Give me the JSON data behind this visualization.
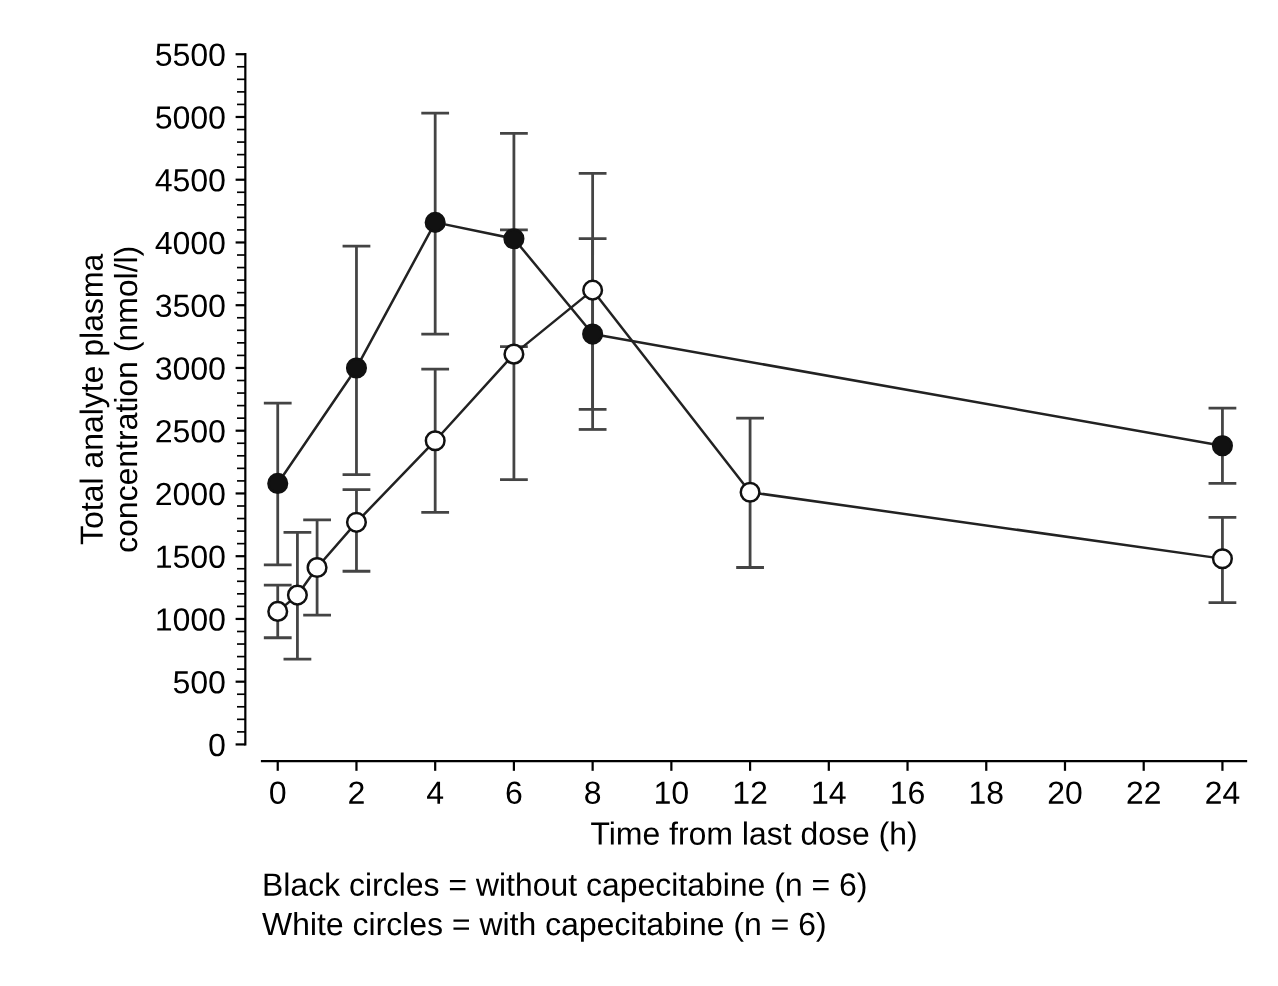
{
  "chart_data": {
    "type": "line",
    "xlabel": "Time from last dose (h)",
    "ylabel": "Total analyte plasma\nconcentration (nmol/l)",
    "xlim": [
      -0.4,
      24.6
    ],
    "xticks": [
      0,
      2,
      4,
      6,
      8,
      10,
      12,
      14,
      16,
      18,
      20,
      22,
      24
    ],
    "ylim": [
      0,
      5500
    ],
    "yticks": [
      0,
      500,
      1000,
      1500,
      2000,
      2500,
      3000,
      3500,
      4000,
      4500,
      5000,
      5500
    ],
    "grid": false,
    "legend": false,
    "marker": "circle",
    "line_style": "solid",
    "series": [
      {
        "color": "#111111",
        "x": [
          0,
          2,
          4,
          6,
          8,
          24
        ],
        "values": [
          2080,
          3000,
          4160,
          4030,
          3270,
          2380
        ],
        "errors": [
          [
            1430,
            2720
          ],
          [
            2150,
            3970
          ],
          [
            3270,
            5030
          ],
          [
            3170,
            4870
          ],
          [
            2670,
            4030
          ],
          [
            2080,
            2680
          ]
        ]
      },
      {
        "color": "#ffffff",
        "x": [
          0,
          0.5,
          1,
          2,
          4,
          6,
          8,
          12,
          24
        ],
        "values": [
          1060,
          1190,
          1410,
          1770,
          2420,
          3110,
          3620,
          2010,
          1480
        ],
        "errors": [
          [
            850,
            1270
          ],
          [
            680,
            1690
          ],
          [
            1030,
            1790
          ],
          [
            1380,
            2030
          ],
          [
            1850,
            2990
          ],
          [
            2110,
            4100
          ],
          [
            2510,
            4550
          ],
          [
            1410,
            2600
          ],
          [
            1130,
            1810
          ]
        ]
      }
    ],
    "annotations": [
      "Black circles = without capecitabine (n = 6)",
      "White circles = with capecitabine (n = 6)"
    ]
  }
}
